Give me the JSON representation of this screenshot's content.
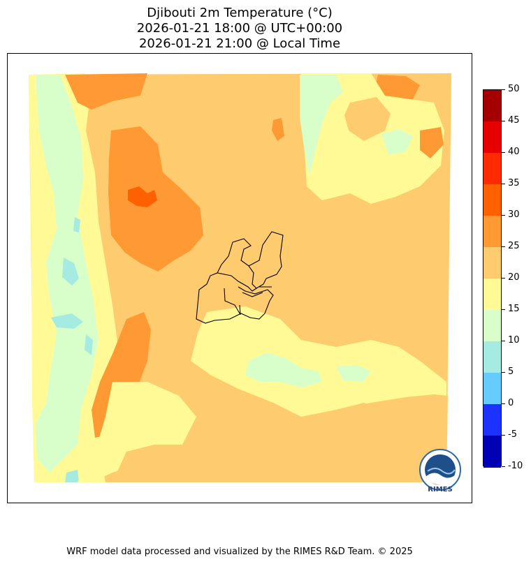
{
  "title": {
    "line1": "Djibouti 2m Temperature (°C)",
    "line2": "2026-01-21 18:00 @ UTC+00:00",
    "line3": "2026-01-21 21:00 @ Local Time"
  },
  "colorbar": {
    "ticks": [
      "50",
      "45",
      "40",
      "35",
      "30",
      "25",
      "20",
      "15",
      "10",
      "5",
      "0",
      "-5",
      "-10"
    ],
    "colors": [
      "#a50000",
      "#e60000",
      "#ff2a00",
      "#ff6000",
      "#ff9933",
      "#fecb6e",
      "#fffa96",
      "#d8feca",
      "#a5ebe1",
      "#66ccff",
      "#1e32ff",
      "#0000b4"
    ]
  },
  "map": {
    "field_colors": {
      "band_20_25": "#fecb6e",
      "band_25_30": "#ff9933",
      "band_30_35": "#ff6000",
      "band_15_20": "#fffa96",
      "band_10_15": "#d8feca",
      "band_5_10": "#a5ebe1"
    },
    "boundary_color": "#000000"
  },
  "logo": {
    "text": "RIMES"
  },
  "footer": "WRF model data processed and visualized by the RIMES R&D Team. © 2025"
}
